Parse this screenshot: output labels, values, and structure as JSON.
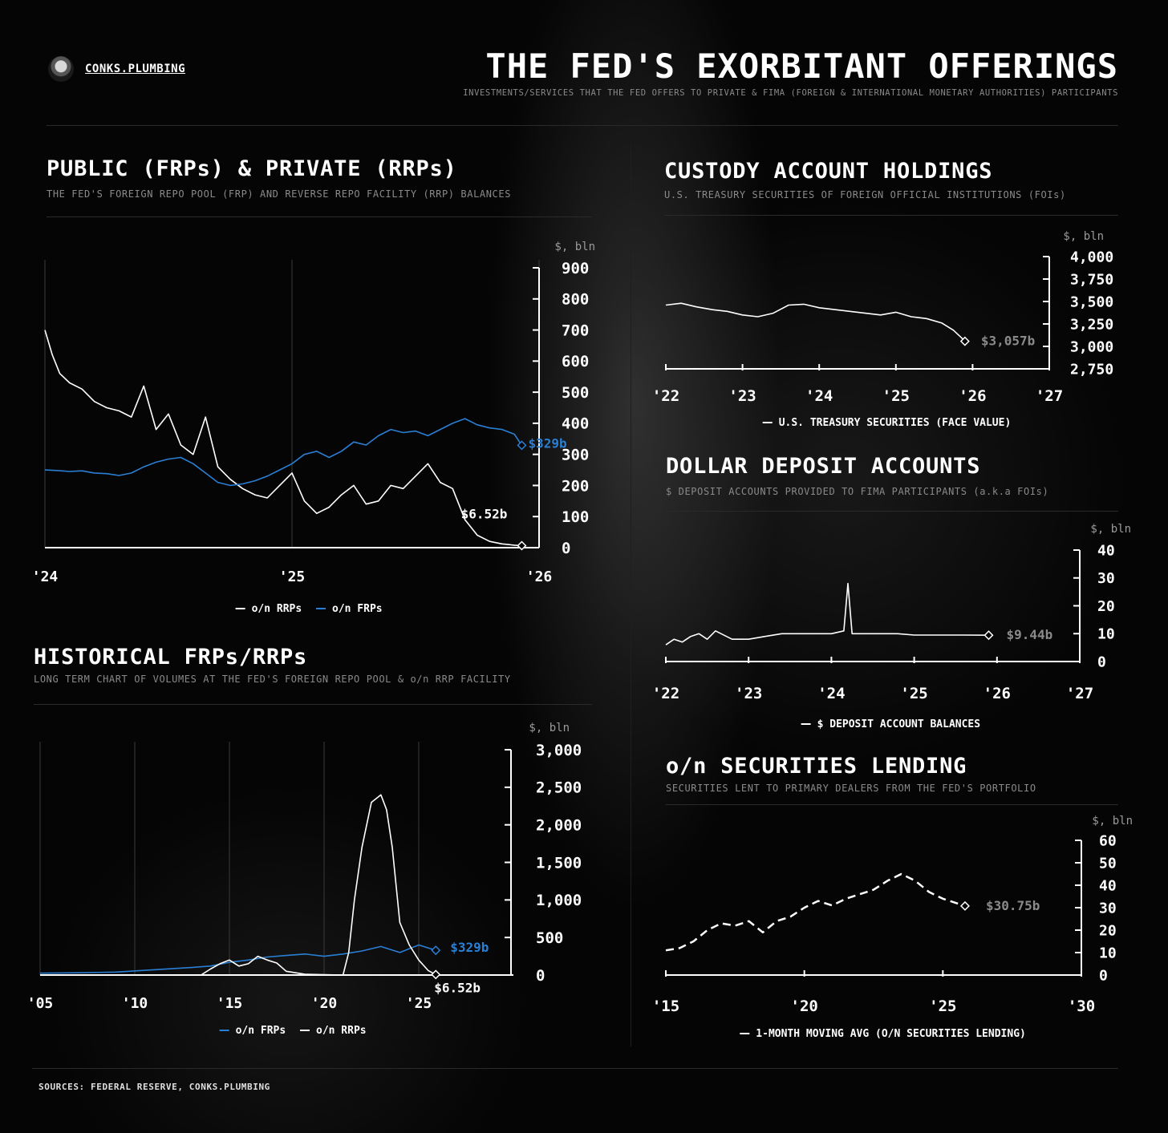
{
  "header": {
    "brand": "CONKS.PLUMBING",
    "title": "THE FED'S EXORBITANT OFFERINGS",
    "subtitle": "INVESTMENTS/SERVICES THAT THE FED OFFERS TO PRIVATE & FIMA (FOREIGN & INTERNATIONAL MONETARY AUTHORITIES) PARTICIPANTS"
  },
  "footer": {
    "sources": "SOURCES: FEDERAL RESERVE, CONKS.PLUMBING"
  },
  "sections": {
    "frp_rrp": {
      "title": "PUBLIC (FRPs) & PRIVATE (RRPs)",
      "subtitle": "THE FED'S FOREIGN REPO POOL (FRP) AND REVERSE REPO FACILITY (RRP) BALANCES"
    },
    "historical": {
      "title": "HISTORICAL FRPs/RRPs",
      "subtitle": "LONG TERM CHART OF VOLUMES AT THE FED'S FOREIGN REPO POOL & o/n RRP FACILITY"
    },
    "custody": {
      "title": "CUSTODY ACCOUNT HOLDINGS",
      "subtitle": "U.S. TREASURY SECURITIES OF FOREIGN OFFICIAL INSTITUTIONS (FOIs)"
    },
    "deposit": {
      "title": "DOLLAR DEPOSIT ACCOUNTS",
      "subtitle": "$ DEPOSIT ACCOUNTS PROVIDED TO FIMA PARTICIPANTS (a.k.a FOIs)"
    },
    "seclend": {
      "title": "o/n SECURITIES LENDING",
      "subtitle": "SECURITIES LENT TO PRIMARY DEALERS FROM THE FED'S PORTFOLIO"
    }
  },
  "chart_data": [
    {
      "id": "frp_rrp",
      "type": "line",
      "ylabel": "$, bln",
      "ylim": [
        0,
        900
      ],
      "yticks": [
        0,
        100,
        200,
        300,
        400,
        500,
        600,
        700,
        800,
        900
      ],
      "ytick_labels": [
        "0",
        "100",
        "200",
        "300",
        "400",
        "500",
        "600",
        "700",
        "800",
        "900"
      ],
      "xlim": [
        2024.0,
        2026.0
      ],
      "xticks": [
        2024,
        2025,
        2026
      ],
      "xtick_labels": [
        "'24",
        "'25",
        "'26"
      ],
      "legend_position": "bottom",
      "series": [
        {
          "name": "o/n RRPs",
          "color": "#ffffff",
          "x": [
            2024.0,
            2024.03,
            2024.06,
            2024.1,
            2024.15,
            2024.2,
            2024.25,
            2024.3,
            2024.35,
            2024.4,
            2024.45,
            2024.5,
            2024.55,
            2024.6,
            2024.65,
            2024.7,
            2024.75,
            2024.8,
            2024.85,
            2024.9,
            2024.95,
            2025.0,
            2025.05,
            2025.1,
            2025.15,
            2025.2,
            2025.25,
            2025.3,
            2025.35,
            2025.4,
            2025.45,
            2025.5,
            2025.55,
            2025.6,
            2025.65,
            2025.7,
            2025.75,
            2025.8,
            2025.85,
            2025.9,
            2025.93
          ],
          "y": [
            700,
            620,
            560,
            530,
            510,
            470,
            450,
            440,
            420,
            520,
            380,
            430,
            330,
            300,
            420,
            260,
            220,
            190,
            170,
            160,
            200,
            240,
            150,
            110,
            130,
            170,
            200,
            140,
            150,
            200,
            190,
            230,
            270,
            210,
            190,
            90,
            40,
            20,
            12,
            8,
            6.52
          ],
          "end_label": "$6.52b"
        },
        {
          "name": "o/n FRPs",
          "color": "#2a7fd4",
          "x": [
            2024.0,
            2024.05,
            2024.1,
            2024.15,
            2024.2,
            2024.25,
            2024.3,
            2024.35,
            2024.4,
            2024.45,
            2024.5,
            2024.55,
            2024.6,
            2024.65,
            2024.7,
            2024.75,
            2024.8,
            2024.85,
            2024.9,
            2024.95,
            2025.0,
            2025.05,
            2025.1,
            2025.15,
            2025.2,
            2025.25,
            2025.3,
            2025.35,
            2025.4,
            2025.45,
            2025.5,
            2025.55,
            2025.6,
            2025.65,
            2025.7,
            2025.75,
            2025.8,
            2025.85,
            2025.9,
            2025.93
          ],
          "y": [
            250,
            248,
            245,
            247,
            240,
            238,
            232,
            240,
            260,
            275,
            285,
            290,
            270,
            240,
            210,
            200,
            205,
            215,
            230,
            250,
            270,
            300,
            310,
            290,
            310,
            340,
            330,
            360,
            380,
            370,
            375,
            360,
            380,
            400,
            415,
            395,
            385,
            380,
            365,
            329
          ],
          "end_label": "$329b"
        }
      ]
    },
    {
      "id": "historical",
      "type": "line",
      "ylabel": "$, bln",
      "ylim": [
        0,
        3000
      ],
      "yticks": [
        0,
        500,
        1000,
        1500,
        2000,
        2500,
        3000
      ],
      "ytick_labels": [
        "0",
        "500",
        "1,000",
        "1,500",
        "2,000",
        "2,500",
        "3,000"
      ],
      "xlim": [
        2005,
        2030
      ],
      "xticks": [
        2005,
        2010,
        2015,
        2020,
        2025
      ],
      "xtick_labels": [
        "'05",
        "'10",
        "'15",
        "'20",
        "'25"
      ],
      "legend_position": "bottom",
      "series": [
        {
          "name": "o/n FRPs",
          "color": "#2a7fd4",
          "x": [
            2005,
            2007,
            2009,
            2011,
            2013,
            2014,
            2015,
            2016,
            2017,
            2018,
            2019,
            2020,
            2021,
            2022,
            2023,
            2024,
            2025,
            2025.9
          ],
          "y": [
            25,
            30,
            40,
            70,
            100,
            120,
            170,
            200,
            240,
            260,
            280,
            250,
            280,
            320,
            380,
            300,
            400,
            329
          ],
          "end_label": "$329b"
        },
        {
          "name": "o/n RRPs",
          "color": "#ffffff",
          "x": [
            2005,
            2013.5,
            2014,
            2014.5,
            2015,
            2015.5,
            2016,
            2016.5,
            2017,
            2017.5,
            2018,
            2019,
            2020,
            2021,
            2021.3,
            2021.6,
            2022,
            2022.5,
            2023,
            2023.3,
            2023.6,
            2024,
            2024.5,
            2025,
            2025.5,
            2025.9
          ],
          "y": [
            0,
            0,
            80,
            150,
            200,
            120,
            150,
            250,
            200,
            160,
            50,
            10,
            5,
            0,
            300,
            1000,
            1700,
            2300,
            2400,
            2200,
            1700,
            700,
            400,
            200,
            60,
            6.52
          ],
          "end_label": "$6.52b"
        }
      ]
    },
    {
      "id": "custody",
      "type": "line",
      "ylabel": "$, bln",
      "ylim": [
        2750,
        4000
      ],
      "yticks": [
        2750,
        3000,
        3250,
        3500,
        3750,
        4000
      ],
      "ytick_labels": [
        "2,750",
        "3,000",
        "3,250",
        "3,500",
        "3,750",
        "4,000"
      ],
      "xlim": [
        2022,
        2027
      ],
      "xticks": [
        2022,
        2023,
        2024,
        2025,
        2026,
        2027
      ],
      "xtick_labels": [
        "'22",
        "'23",
        "'24",
        "'25",
        "'26",
        "'27"
      ],
      "legend_position": "bottom",
      "series": [
        {
          "name": "U.S. TREASURY SECURITIES (FACE VALUE)",
          "color": "#ffffff",
          "x": [
            2022.0,
            2022.2,
            2022.4,
            2022.6,
            2022.8,
            2023.0,
            2023.2,
            2023.4,
            2023.6,
            2023.8,
            2024.0,
            2024.2,
            2024.4,
            2024.6,
            2024.8,
            2025.0,
            2025.2,
            2025.4,
            2025.6,
            2025.75,
            2025.85,
            2025.9
          ],
          "y": [
            3460,
            3480,
            3440,
            3410,
            3390,
            3350,
            3330,
            3370,
            3460,
            3470,
            3430,
            3410,
            3390,
            3370,
            3350,
            3380,
            3330,
            3310,
            3260,
            3180,
            3100,
            3057
          ],
          "end_label": "$3,057b"
        }
      ]
    },
    {
      "id": "deposit",
      "type": "line",
      "ylabel": "$, bln",
      "ylim": [
        0,
        40
      ],
      "yticks": [
        0,
        10,
        20,
        30,
        40
      ],
      "ytick_labels": [
        "0",
        "10",
        "20",
        "30",
        "40"
      ],
      "xlim": [
        2022,
        2027
      ],
      "xticks": [
        2022,
        2023,
        2024,
        2025,
        2026,
        2027
      ],
      "xtick_labels": [
        "'22",
        "'23",
        "'24",
        "'25",
        "'26",
        "'27"
      ],
      "legend_position": "bottom",
      "series": [
        {
          "name": "$ DEPOSIT ACCOUNT BALANCES",
          "color": "#ffffff",
          "x": [
            2022.0,
            2022.1,
            2022.2,
            2022.3,
            2022.4,
            2022.5,
            2022.6,
            2022.8,
            2023.0,
            2023.2,
            2023.4,
            2023.6,
            2023.8,
            2024.0,
            2024.15,
            2024.2,
            2024.25,
            2024.3,
            2024.5,
            2024.8,
            2025.0,
            2025.3,
            2025.6,
            2025.9
          ],
          "y": [
            6,
            8,
            7,
            9,
            10,
            8,
            11,
            8,
            8,
            9,
            10,
            10,
            10,
            10,
            11,
            28,
            10,
            10,
            10,
            10,
            9.5,
            9.5,
            9.5,
            9.44
          ],
          "end_label": "$9.44b"
        }
      ]
    },
    {
      "id": "seclend",
      "type": "line",
      "ylabel": "$, bln",
      "ylim": [
        0,
        60
      ],
      "yticks": [
        0,
        10,
        20,
        30,
        40,
        50,
        60
      ],
      "ytick_labels": [
        "0",
        "10",
        "20",
        "30",
        "40",
        "50",
        "60"
      ],
      "xlim": [
        2015,
        2030
      ],
      "xticks": [
        2015,
        2020,
        2025,
        2030
      ],
      "xtick_labels": [
        "'15",
        "'20",
        "'25",
        "'30"
      ],
      "legend_position": "bottom",
      "series": [
        {
          "name": "1-MONTH MOVING AVG (O/N SECURITIES LENDING)",
          "color": "#ffffff",
          "x": [
            2015.0,
            2015.5,
            2016.0,
            2016.5,
            2017.0,
            2017.5,
            2018.0,
            2018.5,
            2019.0,
            2019.5,
            2020.0,
            2020.5,
            2021.0,
            2021.5,
            2022.0,
            2022.5,
            2023.0,
            2023.5,
            2024.0,
            2024.5,
            2025.0,
            2025.5,
            2025.8
          ],
          "y": [
            11,
            12,
            15,
            20,
            23,
            22,
            24,
            19,
            24,
            26,
            30,
            33,
            31,
            34,
            36,
            38,
            42,
            45,
            42,
            37,
            34,
            32,
            30.75
          ],
          "end_label": "$30.75b"
        }
      ]
    }
  ]
}
